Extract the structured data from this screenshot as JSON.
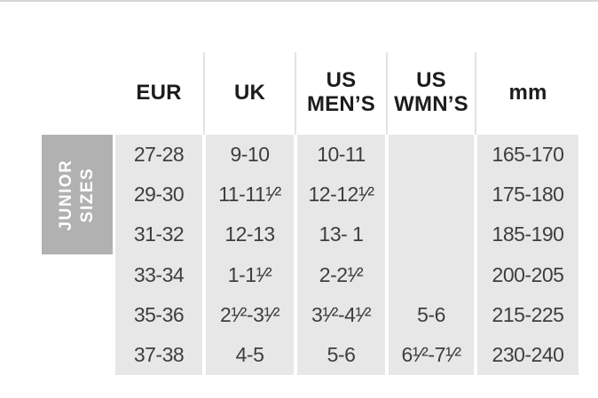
{
  "page": {
    "background": "#ffffff",
    "top_rule_color": "#d6d6d6"
  },
  "table": {
    "row_group_label": "JUNIOR SIZES",
    "row_group_bg": "#b1b1b1",
    "column_bg": "#e7e7e7",
    "header_text_color": "#1c1c1c",
    "body_text_color": "#3e3e3e",
    "headers": [
      "EUR",
      "UK",
      "US MEN’S",
      "US WMN’S",
      "mm"
    ],
    "rows": [
      [
        "27-28",
        "9-10",
        "10-11",
        "",
        "165-170"
      ],
      [
        "29-30",
        "11-11¹⁄²",
        "12-12¹⁄²",
        "",
        "175-180"
      ],
      [
        "31-32",
        "12-13",
        "13- 1",
        "",
        "185-190"
      ],
      [
        "33-34",
        "1-1¹⁄²",
        "2-2¹⁄²",
        "",
        "200-205"
      ],
      [
        "35-36",
        "2¹⁄²-3¹⁄²",
        "3¹⁄²-4¹⁄²",
        "5-6",
        "215-225"
      ],
      [
        "37-38",
        "4-5",
        "5-6",
        "6¹⁄²-7¹⁄²",
        "230-240"
      ]
    ]
  }
}
